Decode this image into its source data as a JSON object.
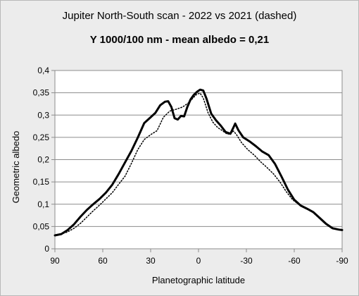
{
  "chart_data": {
    "type": "line",
    "title": "Jupiter North-South scan - 2022 vs 2021 (dashed)",
    "subtitle": "Y 1000/100 nm - mean albedo = 0,21",
    "xlabel": "Planetographic latitude",
    "ylabel": "Geometric albedo",
    "xlim": [
      90,
      -90
    ],
    "ylim": [
      0,
      0.4
    ],
    "xticks": [
      90,
      60,
      30,
      0,
      -30,
      -60,
      -90
    ],
    "xtick_labels": [
      "90",
      "60",
      "30",
      "0",
      "-30",
      "-60",
      "-90"
    ],
    "yticks": [
      0,
      0.05,
      0.1,
      0.15,
      0.2,
      0.25,
      0.3,
      0.35,
      0.4
    ],
    "ytick_labels": [
      "0",
      "0,05",
      "0,1",
      "0,15",
      "0,2",
      "0,25",
      "0,3",
      "0,35",
      "0,4"
    ],
    "grid": true,
    "series": [
      {
        "name": "2022",
        "style": "solid",
        "color": "#000000",
        "points": [
          [
            90,
            0.03
          ],
          [
            86,
            0.033
          ],
          [
            82,
            0.042
          ],
          [
            78,
            0.055
          ],
          [
            74,
            0.072
          ],
          [
            70,
            0.087
          ],
          [
            66,
            0.1
          ],
          [
            62,
            0.112
          ],
          [
            58,
            0.126
          ],
          [
            54,
            0.144
          ],
          [
            50,
            0.168
          ],
          [
            46,
            0.194
          ],
          [
            42,
            0.22
          ],
          [
            38,
            0.25
          ],
          [
            34,
            0.282
          ],
          [
            30,
            0.295
          ],
          [
            27,
            0.305
          ],
          [
            24,
            0.322
          ],
          [
            21,
            0.33
          ],
          [
            19,
            0.331
          ],
          [
            17,
            0.318
          ],
          [
            15,
            0.293
          ],
          [
            13,
            0.29
          ],
          [
            11,
            0.298
          ],
          [
            9,
            0.297
          ],
          [
            7,
            0.318
          ],
          [
            5,
            0.335
          ],
          [
            3,
            0.345
          ],
          [
            1,
            0.352
          ],
          [
            -1,
            0.357
          ],
          [
            -3,
            0.355
          ],
          [
            -5,
            0.337
          ],
          [
            -8,
            0.303
          ],
          [
            -11,
            0.288
          ],
          [
            -14,
            0.276
          ],
          [
            -17,
            0.262
          ],
          [
            -20,
            0.258
          ],
          [
            -22,
            0.273
          ],
          [
            -23,
            0.281
          ],
          [
            -25,
            0.266
          ],
          [
            -28,
            0.25
          ],
          [
            -32,
            0.241
          ],
          [
            -36,
            0.23
          ],
          [
            -40,
            0.218
          ],
          [
            -44,
            0.21
          ],
          [
            -48,
            0.19
          ],
          [
            -52,
            0.162
          ],
          [
            -56,
            0.133
          ],
          [
            -60,
            0.11
          ],
          [
            -64,
            0.097
          ],
          [
            -68,
            0.09
          ],
          [
            -72,
            0.082
          ],
          [
            -76,
            0.069
          ],
          [
            -80,
            0.056
          ],
          [
            -84,
            0.046
          ],
          [
            -88,
            0.043
          ],
          [
            -90,
            0.042
          ]
        ]
      },
      {
        "name": "2021",
        "style": "dashed",
        "color": "#000000",
        "points": [
          [
            90,
            0.031
          ],
          [
            86,
            0.033
          ],
          [
            82,
            0.038
          ],
          [
            78,
            0.046
          ],
          [
            74,
            0.057
          ],
          [
            70,
            0.071
          ],
          [
            66,
            0.085
          ],
          [
            62,
            0.098
          ],
          [
            58,
            0.112
          ],
          [
            54,
            0.126
          ],
          [
            50,
            0.145
          ],
          [
            46,
            0.163
          ],
          [
            42,
            0.192
          ],
          [
            38,
            0.223
          ],
          [
            34,
            0.245
          ],
          [
            30,
            0.256
          ],
          [
            26,
            0.265
          ],
          [
            22,
            0.295
          ],
          [
            18,
            0.309
          ],
          [
            14,
            0.313
          ],
          [
            10,
            0.318
          ],
          [
            6,
            0.328
          ],
          [
            3,
            0.34
          ],
          [
            1,
            0.347
          ],
          [
            -1,
            0.349
          ],
          [
            -3,
            0.338
          ],
          [
            -6,
            0.305
          ],
          [
            -9,
            0.284
          ],
          [
            -12,
            0.272
          ],
          [
            -15,
            0.265
          ],
          [
            -18,
            0.257
          ],
          [
            -20,
            0.258
          ],
          [
            -22,
            0.264
          ],
          [
            -24,
            0.255
          ],
          [
            -27,
            0.238
          ],
          [
            -31,
            0.222
          ],
          [
            -35,
            0.21
          ],
          [
            -39,
            0.195
          ],
          [
            -43,
            0.182
          ],
          [
            -47,
            0.168
          ],
          [
            -51,
            0.15
          ],
          [
            -55,
            0.128
          ],
          [
            -59,
            0.11
          ],
          [
            -63,
            0.099
          ],
          [
            -67,
            0.092
          ],
          [
            -71,
            0.084
          ],
          [
            -75,
            0.071
          ],
          [
            -79,
            0.057
          ],
          [
            -83,
            0.048
          ],
          [
            -87,
            0.043
          ],
          [
            -90,
            0.042
          ]
        ]
      }
    ]
  }
}
